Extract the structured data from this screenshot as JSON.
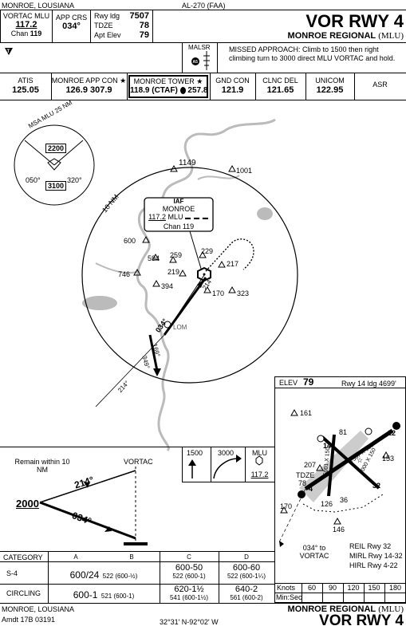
{
  "header": {
    "location": "MONROE, LOUSIANA",
    "procedure_id": "AL-270 (FAA)",
    "title": "VOR RWY 4",
    "airport": "MONROE REGIONAL",
    "airport_id": "(MLU)"
  },
  "briefing": {
    "nav_label": "VORTAC MLU",
    "nav_freq": "117.2",
    "nav_chan_label": "Chan",
    "nav_chan": "119",
    "app_crs_label": "APP CRS",
    "app_crs": "034°",
    "rwy_ldg_label": "Rwy ldg",
    "rwy_ldg": "7507",
    "tdze_label": "TDZE",
    "tdze": "78",
    "apt_elev_label": "Apt Elev",
    "apt_elev": "79",
    "lighting": "MALSR",
    "missed_approach": "MISSED APPROACH: Climb to 1500 then right climbing turn to 3000 direct MLU VORTAC and hold."
  },
  "comms": [
    {
      "label": "ATIS",
      "freq": "125.05"
    },
    {
      "label": "MONROE APP CON",
      "freq": "126.9  307.9"
    },
    {
      "label": "MONROE TOWER",
      "freq": "118.9 (CTAF)",
      "freq2": "257.8"
    },
    {
      "label": "GND CON",
      "freq": "121.9"
    },
    {
      "label": "CLNC DEL",
      "freq": "121.65"
    },
    {
      "label": "UNICOM",
      "freq": "122.95"
    },
    {
      "label": "ASR",
      "freq": ""
    }
  ],
  "plan_view": {
    "msa_label": "MSA MLU 25 NM",
    "msa_alt1": "2200",
    "msa_alt2": "3100",
    "msa_brg1": "050°",
    "msa_brg2": "320°",
    "ring_label": "10 NM",
    "iaf_label": "IAF",
    "iaf_name": "MONROE",
    "iaf_freq": "117.2",
    "iaf_id": "MLU",
    "iaf_chan": "Chan 119",
    "lom_label": "LOM",
    "crs_in": "034°",
    "crs_out": "214°",
    "crs_169": "169°",
    "crs_349": "349°",
    "crs_214_sw": "214°",
    "crs_214_in": "214°",
    "obstacles": [
      "1149",
      "1001",
      "600",
      "594",
      "259",
      "229",
      "217",
      "219",
      "746",
      "394",
      "170",
      "323"
    ]
  },
  "airport_diagram": {
    "elev_label": "ELEV",
    "elev": "79",
    "rwy_note": "Rwy 14 ldg 4699'",
    "obs_161": "161",
    "obs_207": "207",
    "obs_170": "170",
    "obs_153": "153",
    "obs_146": "146",
    "tdze_label": "TDZE",
    "tdze": "78",
    "rwy_126": "126",
    "rwy_36": "36",
    "rwy_81": "81",
    "rwy_4": "4",
    "rwy_22": "22",
    "rwy_32": "32",
    "rwy_14": "14",
    "dim1": "7507 X 150",
    "dim2": "5000 X 150",
    "dim3": "5001 X 150",
    "to_vortac": "034° to VORTAC",
    "light1": "REIL Rwy 32",
    "light2": "MIRL Rwy 14-32",
    "light3": "HIRL Rwy 4-22",
    "knots_label": "Knots",
    "knots": [
      "60",
      "90",
      "120",
      "150",
      "180"
    ],
    "minsec_label": "Min:Sec"
  },
  "profile": {
    "remain_label": "Remain within 10 NM",
    "vortac_label": "VORTAC",
    "alt": "2000",
    "crs_out": "214°",
    "crs_in": "034°",
    "ma_alt1": "1500",
    "ma_alt2": "3000",
    "ma_nav_id": "MLU",
    "ma_nav_freq": "117.2"
  },
  "minimums": {
    "headers": [
      "CATEGORY",
      "A",
      "B",
      "C",
      "D"
    ],
    "s4_label": "S-4",
    "s4_ab_main": "600/24",
    "s4_ab_sub": "522 (600-½)",
    "s4_c_main": "600-50",
    "s4_c_sub": "522 (600-1)",
    "s4_d_main": "600-60",
    "s4_d_sub": "522 (600-1¼)",
    "circ_label": "CIRCLING",
    "circ_ab_main": "600-1",
    "circ_ab_sub": "521 (600-1)",
    "circ_c_main": "620-1½",
    "circ_c_sub": "541 (600-1½)",
    "circ_d_main": "640-2",
    "circ_d_sub": "561 (600-2)"
  },
  "footer": {
    "location": "MONROE, LOUSIANA",
    "amdt": "Amdt 17B  03191",
    "coords": "32°31′ N-92°02′ W",
    "airport": "MONROE REGIONAL",
    "airport_id": "(MLU)",
    "title": "VOR RWY 4"
  }
}
